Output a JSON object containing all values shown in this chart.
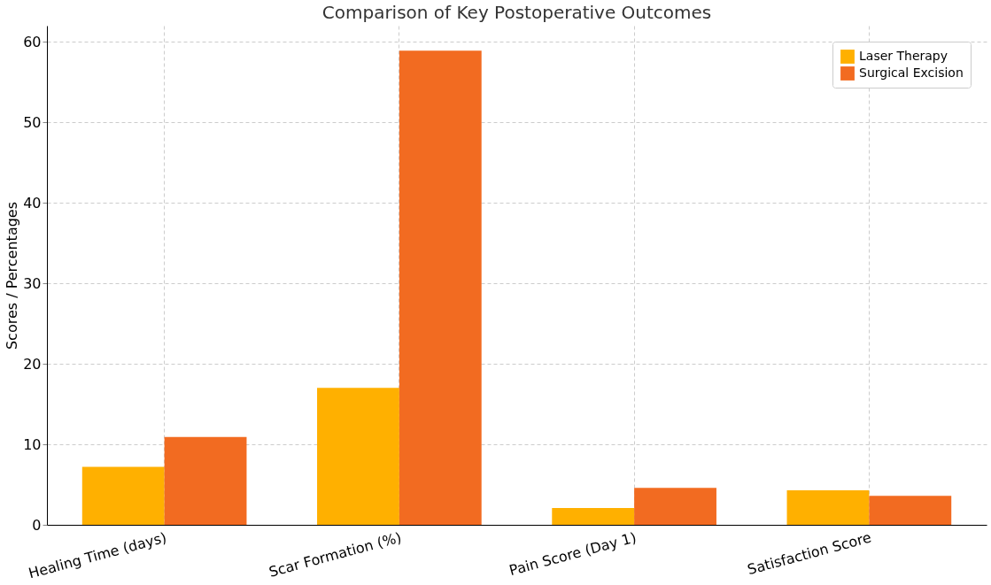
{
  "chart_data": {
    "type": "bar",
    "title": "Comparison of Key Postoperative Outcomes",
    "ylabel": "Scores / Percentages",
    "categories": [
      "Healing Time (days)",
      "Scar Formation (%)",
      "Pain Score (Day 1)",
      "Satisfaction Score"
    ],
    "series": [
      {
        "name": "Laser Therapy",
        "color": "#ffb000",
        "values": [
          7.2,
          17.0,
          2.1,
          4.3
        ]
      },
      {
        "name": "Surgical Excision",
        "color": "#f26b21",
        "values": [
          10.9,
          58.9,
          4.6,
          3.6
        ]
      }
    ],
    "ylim": [
      0,
      62
    ],
    "yticks": [
      0,
      10,
      20,
      30,
      40,
      50,
      60
    ],
    "grid": true,
    "legend": "top right"
  }
}
